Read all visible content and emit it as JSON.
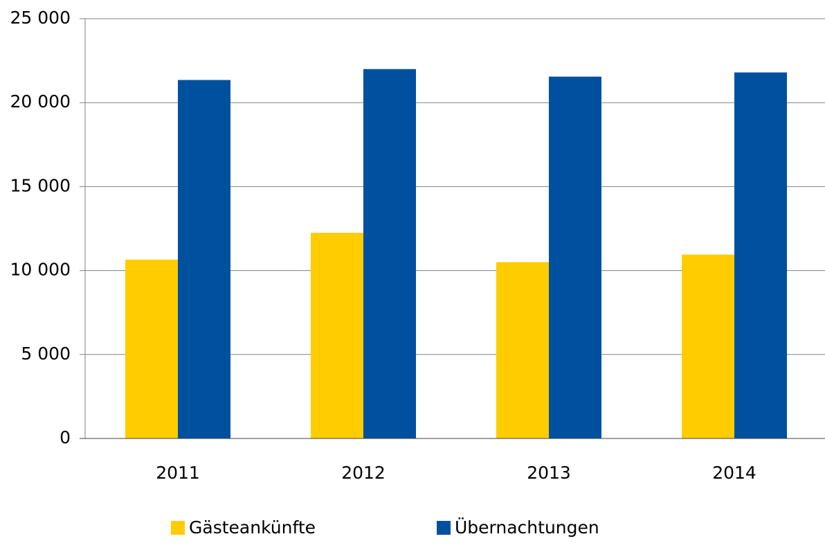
{
  "chart_data": {
    "type": "bar",
    "categories": [
      "2011",
      "2012",
      "2013",
      "2014"
    ],
    "series": [
      {
        "name": "Gästeankünfte",
        "color": "#ffcc00",
        "values": [
          10650,
          12250,
          10500,
          10950
        ]
      },
      {
        "name": "Übernachtungen",
        "color": "#0050a0",
        "values": [
          21350,
          22000,
          21550,
          21800
        ]
      }
    ],
    "ylim": [
      0,
      25000
    ],
    "yticks": [
      0,
      {
        "value": 5000,
        "label": "5 000"
      },
      {
        "value": 10000,
        "label": "10 000"
      },
      {
        "value": 15000,
        "label": "15 000"
      },
      {
        "value": 20000,
        "label": "20 000"
      },
      {
        "value": 25000,
        "label": "25 000"
      }
    ],
    "grid": true,
    "legend": "bottom"
  }
}
